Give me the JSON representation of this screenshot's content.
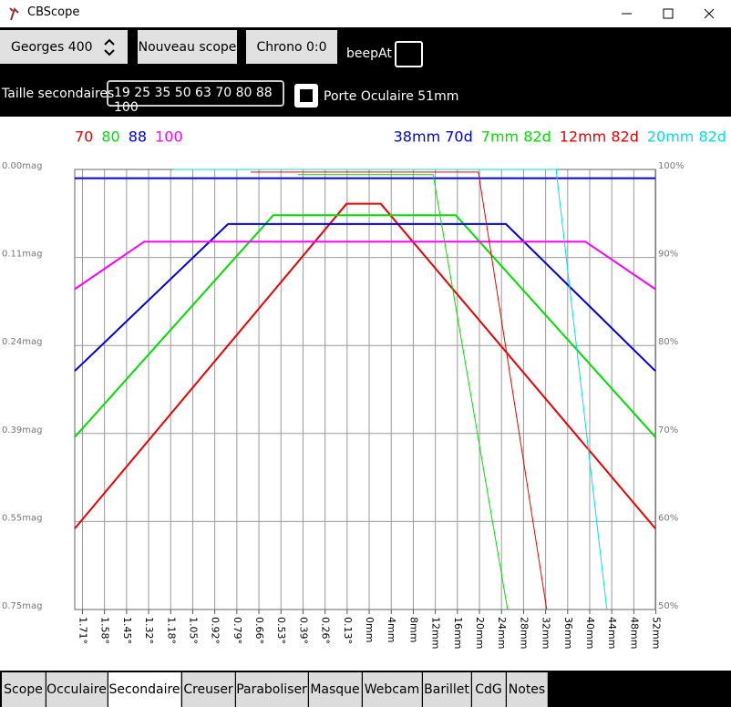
{
  "window": {
    "title": "CBScope"
  },
  "toolbar": {
    "scope": "Georges 400",
    "new_scope": "Nouveau scope",
    "chrono": "Chrono 0:0",
    "beep": "beepAt"
  },
  "options": {
    "secondary_label": "Taille secondaires",
    "secondary_sizes": "19 25 35 50 63 70 80 88 100",
    "focuser": "Porte Oculaire 51mm"
  },
  "chart_data": {
    "type": "line",
    "xlim": [
      -53.4,
      51.9
    ],
    "xticks": [
      {
        "value": -52,
        "label": "1.71°"
      },
      {
        "value": -48,
        "label": "1.58°"
      },
      {
        "value": -44,
        "label": "1.45°"
      },
      {
        "value": -40,
        "label": "1.32°"
      },
      {
        "value": -36,
        "label": "1.18°"
      },
      {
        "value": -32,
        "label": "1.05°"
      },
      {
        "value": -28,
        "label": "0.92°"
      },
      {
        "value": -24,
        "label": "0.79°"
      },
      {
        "value": -20,
        "label": "0.66°"
      },
      {
        "value": -16,
        "label": "0.53°"
      },
      {
        "value": -12,
        "label": "0.39°"
      },
      {
        "value": -8,
        "label": "0.26°"
      },
      {
        "value": -4,
        "label": "0.13°"
      },
      {
        "value": 0,
        "label": "0mm"
      },
      {
        "value": 4,
        "label": "4mm"
      },
      {
        "value": 8,
        "label": "8mm"
      },
      {
        "value": 12,
        "label": "12mm"
      },
      {
        "value": 16,
        "label": "16mm"
      },
      {
        "value": 20,
        "label": "20mm"
      },
      {
        "value": 24,
        "label": "24mm"
      },
      {
        "value": 28,
        "label": "28mm"
      },
      {
        "value": 32,
        "label": "32mm"
      },
      {
        "value": 36,
        "label": "36mm"
      },
      {
        "value": 40,
        "label": "40mm"
      },
      {
        "value": 44,
        "label": "44mm"
      },
      {
        "value": 48,
        "label": "48mm"
      },
      {
        "value": 52,
        "label": "52mm"
      }
    ],
    "ylim": [
      50,
      100
    ],
    "yticks": [
      {
        "value": 100,
        "label": "0.00mag"
      },
      {
        "value": 90,
        "label": "0.11mag"
      },
      {
        "value": 80,
        "label": "0.24mag"
      },
      {
        "value": 70,
        "label": "0.39mag"
      },
      {
        "value": 60,
        "label": "0.55mag"
      },
      {
        "value": 50,
        "label": "0.75mag"
      }
    ],
    "y2lim": [
      50,
      100
    ],
    "y2ticks": [
      {
        "value": 100,
        "label": "100%"
      },
      {
        "value": 90,
        "label": "90%"
      },
      {
        "value": 80,
        "label": "80%"
      },
      {
        "value": 70,
        "label": "70%"
      },
      {
        "value": 60,
        "label": "60%"
      },
      {
        "value": 50,
        "label": "50%"
      }
    ],
    "grid": true,
    "series": [
      {
        "name": "70",
        "color": "#ee0000",
        "legend": "left",
        "line_width": 2,
        "x": [
          -53.4,
          -4.1,
          2.1,
          51.9
        ],
        "values": [
          59.2,
          96.1,
          96.1,
          59.2
        ]
      },
      {
        "name": "80",
        "color": "#00e000",
        "legend": "left",
        "line_width": 2,
        "x": [
          -53.4,
          -17.4,
          15.7,
          51.9
        ],
        "values": [
          69.6,
          94.8,
          94.8,
          69.6
        ]
      },
      {
        "name": "88",
        "color": "#0000dd",
        "legend": "left",
        "line_width": 2,
        "x": [
          -53.4,
          -25.6,
          24.8,
          51.9
        ],
        "values": [
          77.1,
          93.8,
          93.8,
          77.1
        ]
      },
      {
        "name": "100",
        "color": "#ff00ff",
        "legend": "left",
        "line_width": 2,
        "x": [
          -53.4,
          -40.8,
          39.2,
          51.9
        ],
        "values": [
          86.4,
          91.8,
          91.8,
          86.4
        ]
      },
      {
        "name": "38mm 70d",
        "color": "#0000dd",
        "legend": "right",
        "line_width": 2,
        "x": [
          -53.4,
          51.9
        ],
        "values": [
          99.0,
          99.0
        ]
      },
      {
        "name": "7mm 82d",
        "color": "#00e000",
        "legend": "right",
        "line_width": 1,
        "x": [
          -12.9,
          11.6,
          25.1
        ],
        "values": [
          99.4,
          99.4,
          50
        ]
      },
      {
        "name": "12mm 82d",
        "color": "#ee0000",
        "legend": "right",
        "line_width": 1,
        "x": [
          -21.5,
          19.8,
          32.2
        ],
        "values": [
          99.7,
          99.7,
          50
        ]
      },
      {
        "name": "20mm 82d",
        "color": "#00e0e0",
        "legend": "right",
        "line_width": 1,
        "x": [
          -35.5,
          33.9,
          43.1
        ],
        "values": [
          100,
          100,
          50
        ]
      }
    ]
  },
  "tabs": {
    "items": [
      "Scope",
      "Occulaire",
      "Secondaire",
      "Creuser",
      "Paraboliser",
      "Masque",
      "Webcam",
      "Barillet",
      "CdG",
      "Notes"
    ],
    "selected": 2
  }
}
